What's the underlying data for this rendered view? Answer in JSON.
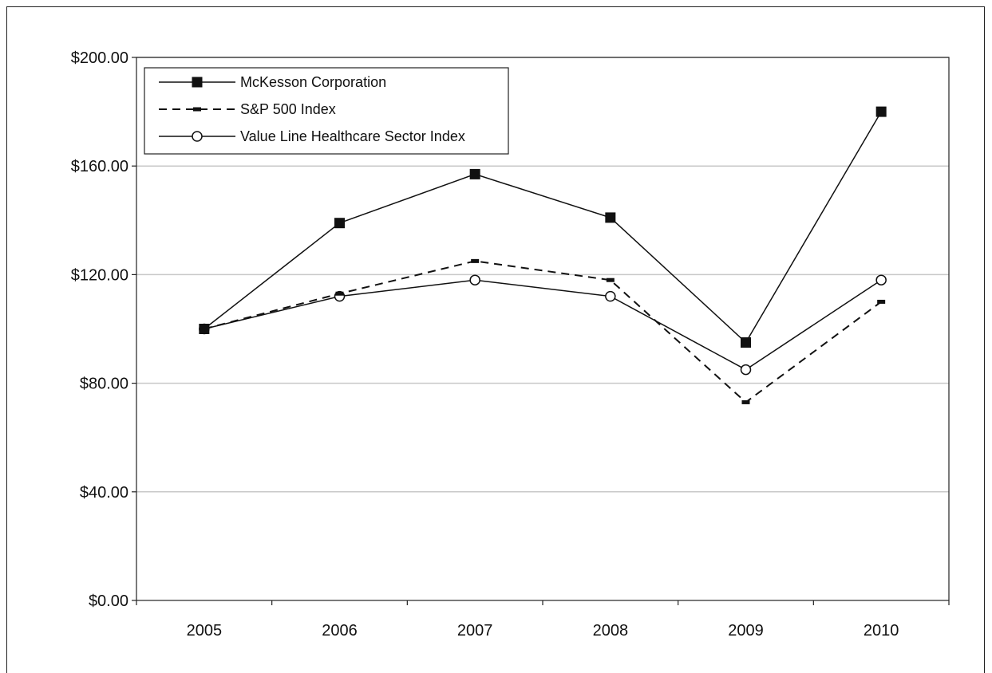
{
  "chart_data": {
    "type": "line",
    "title": "",
    "xlabel": "",
    "ylabel": "",
    "categories": [
      "2005",
      "2006",
      "2007",
      "2008",
      "2009",
      "2010"
    ],
    "ylim": [
      0,
      200
    ],
    "y_ticks": [
      0,
      40,
      80,
      120,
      160,
      200
    ],
    "y_tick_labels": [
      "$0.00",
      "$40.00",
      "$80.00",
      "$120.00",
      "$160.00",
      "$200.00"
    ],
    "grid": "horizontal",
    "legend_position": "top-left",
    "series": [
      {
        "name": "McKesson Corporation",
        "values": [
          100,
          139,
          157,
          141,
          95,
          180
        ],
        "marker": "filled-square",
        "line": "solid",
        "color": "#111111"
      },
      {
        "name": "S&P 500 Index",
        "values": [
          100,
          113,
          125,
          118,
          73,
          110
        ],
        "marker": "dash",
        "line": "dashed",
        "color": "#111111"
      },
      {
        "name": "Value Line Healthcare Sector Index",
        "values": [
          100,
          112,
          118,
          112,
          85,
          118
        ],
        "marker": "open-circle",
        "line": "solid",
        "color": "#111111"
      }
    ]
  }
}
